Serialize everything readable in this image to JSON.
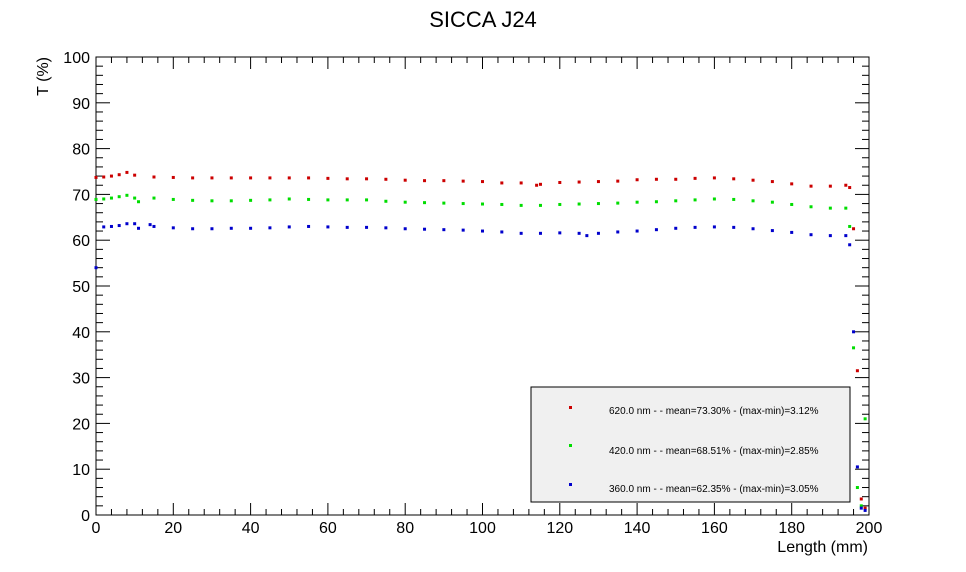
{
  "chart_data": {
    "type": "scatter",
    "title": "SICCA J24",
    "xlabel": "Length (mm)",
    "ylabel": "T (%)",
    "xlim": [
      0,
      200
    ],
    "ylim": [
      0,
      100
    ],
    "xticks": [
      0,
      20,
      40,
      60,
      80,
      100,
      120,
      140,
      160,
      180,
      200
    ],
    "yticks": [
      0,
      10,
      20,
      30,
      40,
      50,
      60,
      70,
      80,
      90,
      100
    ],
    "grid": false,
    "legend_position": "bottom-right",
    "series": [
      {
        "name": "620.0 nm -  - mean=73.30% - (max-min)=3.12%",
        "color": "#cc0000",
        "x": [
          0,
          2,
          4,
          6,
          8,
          10,
          15,
          20,
          25,
          30,
          35,
          40,
          45,
          50,
          55,
          60,
          65,
          70,
          75,
          80,
          85,
          90,
          95,
          100,
          105,
          110,
          114,
          115,
          120,
          125,
          130,
          135,
          140,
          145,
          150,
          155,
          160,
          165,
          170,
          175,
          180,
          185,
          190,
          194,
          195,
          196,
          197,
          198,
          199
        ],
        "y": [
          73.7,
          73.8,
          74.0,
          74.3,
          74.8,
          74.2,
          73.8,
          73.7,
          73.6,
          73.6,
          73.6,
          73.6,
          73.6,
          73.6,
          73.6,
          73.5,
          73.4,
          73.4,
          73.3,
          73.1,
          73.0,
          73.0,
          72.9,
          72.8,
          72.5,
          72.5,
          72.0,
          72.2,
          72.6,
          72.7,
          72.8,
          72.9,
          73.2,
          73.3,
          73.3,
          73.5,
          73.6,
          73.4,
          73.1,
          72.8,
          72.3,
          71.8,
          71.8,
          72.0,
          71.5,
          62.5,
          31.5,
          3.5,
          1.5
        ]
      },
      {
        "name": "420.0 nm -  - mean=68.51% - (max-min)=2.85%",
        "color": "#00dd00",
        "x": [
          0,
          2,
          4,
          6,
          8,
          10,
          11,
          15,
          20,
          25,
          30,
          35,
          40,
          45,
          50,
          55,
          60,
          65,
          70,
          75,
          80,
          85,
          90,
          95,
          100,
          105,
          110,
          115,
          120,
          125,
          130,
          135,
          140,
          145,
          150,
          155,
          160,
          165,
          170,
          175,
          180,
          185,
          190,
          194,
          195,
          196,
          197,
          198,
          199
        ],
        "y": [
          68.9,
          69.0,
          69.2,
          69.5,
          69.8,
          69.2,
          68.4,
          69.2,
          68.9,
          68.7,
          68.6,
          68.6,
          68.7,
          68.8,
          69.0,
          68.9,
          68.8,
          68.8,
          68.8,
          68.5,
          68.3,
          68.2,
          68.1,
          68.0,
          67.9,
          67.8,
          67.6,
          67.6,
          67.8,
          67.9,
          68.0,
          68.1,
          68.3,
          68.4,
          68.6,
          68.8,
          69.0,
          68.9,
          68.6,
          68.3,
          67.8,
          67.3,
          67.0,
          67.0,
          63.0,
          36.5,
          6.0,
          2.0,
          21.0
        ]
      },
      {
        "name": "360.0 nm -  - mean=62.35% - (max-min)=3.05%",
        "color": "#0000cc",
        "x": [
          0,
          2,
          4,
          6,
          8,
          10,
          11,
          14,
          15,
          20,
          25,
          30,
          35,
          40,
          45,
          50,
          55,
          60,
          65,
          70,
          75,
          80,
          85,
          90,
          95,
          100,
          105,
          110,
          115,
          120,
          125,
          127,
          130,
          135,
          140,
          145,
          150,
          155,
          160,
          165,
          170,
          175,
          180,
          185,
          190,
          194,
          195,
          196,
          197,
          198,
          199
        ],
        "y": [
          54.0,
          62.9,
          63.0,
          63.2,
          63.6,
          63.6,
          62.6,
          63.4,
          63.0,
          62.7,
          62.5,
          62.5,
          62.6,
          62.6,
          62.7,
          62.9,
          63.0,
          62.9,
          62.8,
          62.8,
          62.7,
          62.5,
          62.4,
          62.3,
          62.2,
          62.0,
          61.8,
          61.5,
          61.5,
          61.6,
          61.5,
          61.0,
          61.5,
          61.8,
          62.0,
          62.3,
          62.6,
          62.8,
          62.9,
          62.8,
          62.5,
          62.1,
          61.7,
          61.2,
          61.0,
          61.0,
          59.0,
          40.0,
          10.5,
          1.5,
          1.0
        ]
      }
    ]
  }
}
